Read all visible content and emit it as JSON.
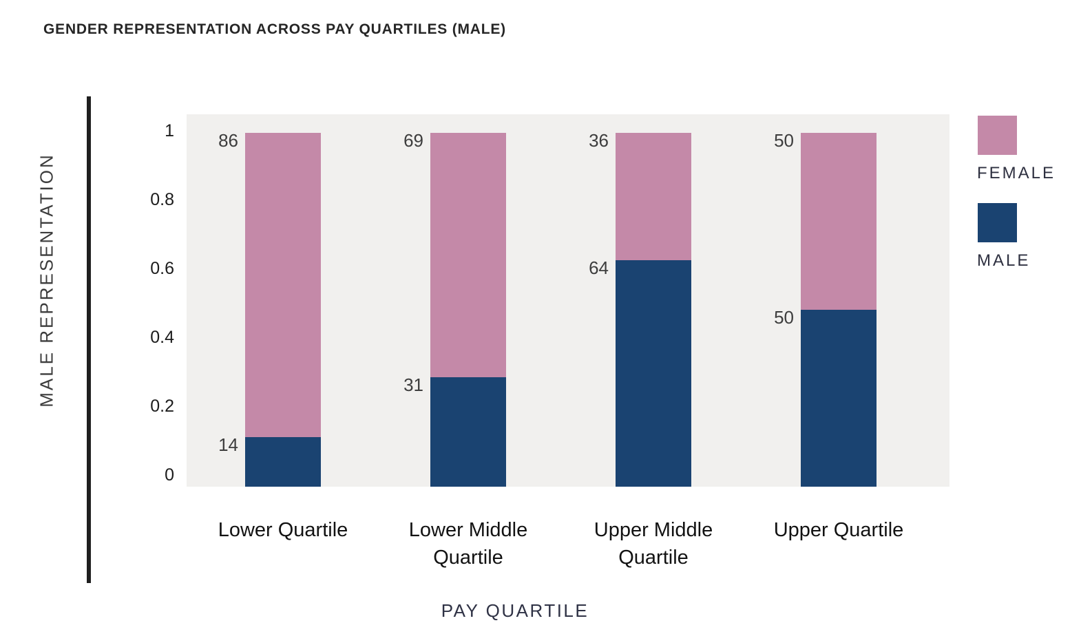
{
  "page": {
    "background": "#ffffff"
  },
  "chart_data": {
    "type": "bar",
    "variant": "stacked-vertical",
    "title": "GENDER REPRESENTATION ACROSS PAY QUARTILES (MALE)",
    "xlabel": "PAY QUARTILE",
    "ylabel": "MALE REPRESENTATION",
    "categories": [
      "Lower Quartile",
      "Lower Middle Quartile",
      "Upper Middle Quartile",
      "Upper Quartile"
    ],
    "series": [
      {
        "name": "MALE",
        "color": "#1a4371",
        "values": [
          14,
          31,
          64,
          50
        ]
      },
      {
        "name": "FEMALE",
        "color": "#c489a8",
        "values": [
          86,
          69,
          36,
          50
        ]
      }
    ],
    "value_labels_shown": true,
    "yticks": [
      {
        "label": "0",
        "value": 0
      },
      {
        "label": "0.2",
        "value": 0.2
      },
      {
        "label": "0.4",
        "value": 0.4
      },
      {
        "label": "0.6",
        "value": 0.6
      },
      {
        "label": "0.8",
        "value": 0.8
      },
      {
        "label": "1",
        "value": 1
      }
    ],
    "ylim": [
      0,
      1
    ],
    "grid": false,
    "plot_background": "#f1f0ee",
    "axis_spine_color": "#1f1f1f",
    "legend": {
      "position": "right",
      "entries": [
        {
          "label": "FEMALE",
          "color": "#c489a8"
        },
        {
          "label": "MALE",
          "color": "#1a4371"
        }
      ]
    }
  }
}
